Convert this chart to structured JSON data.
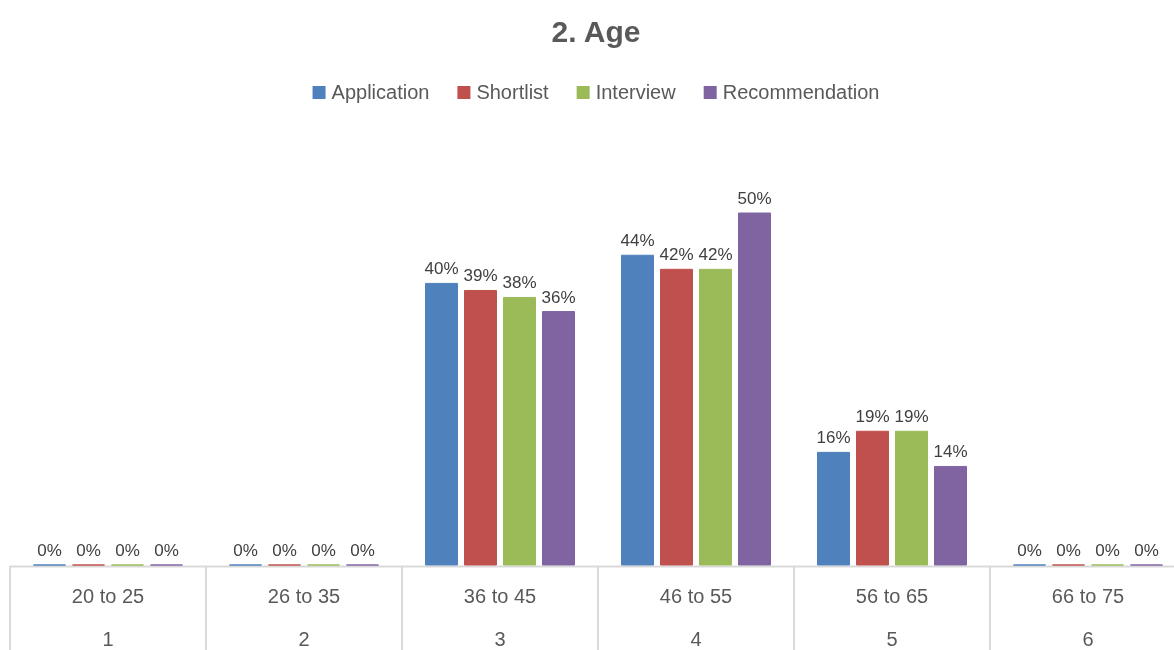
{
  "chart_data": {
    "type": "bar",
    "title": "2. Age",
    "categories": [
      "20 to 25",
      "26 to 35",
      "36 to 45",
      "46 to 55",
      "56 to 65",
      "66 to 75"
    ],
    "series": [
      {
        "name": "Application",
        "color": "#4f81bd",
        "values": [
          0,
          0,
          40,
          44,
          16,
          0
        ],
        "value_labels": [
          "0%",
          "0%",
          "40%",
          "44%",
          "16%",
          "0%"
        ]
      },
      {
        "name": "Shortlist",
        "color": "#c0504d",
        "values": [
          0,
          0,
          39,
          42,
          19,
          0
        ],
        "value_labels": [
          "0%",
          "0%",
          "39%",
          "42%",
          "19%",
          "0%"
        ]
      },
      {
        "name": "Interview",
        "color": "#9bbb59",
        "values": [
          0,
          0,
          38,
          42,
          19,
          0
        ],
        "value_labels": [
          "0%",
          "0%",
          "38%",
          "42%",
          "19%",
          "0%"
        ]
      },
      {
        "name": "Recommendation",
        "color": "#8064a2",
        "values": [
          0,
          0,
          36,
          50,
          14,
          0
        ],
        "value_labels": [
          "0%",
          "0%",
          "36%",
          "50%",
          "14%",
          "0%"
        ]
      }
    ],
    "legend": "top",
    "annotations": [
      "1",
      "2",
      "3",
      "4",
      "5",
      "6"
    ]
  }
}
